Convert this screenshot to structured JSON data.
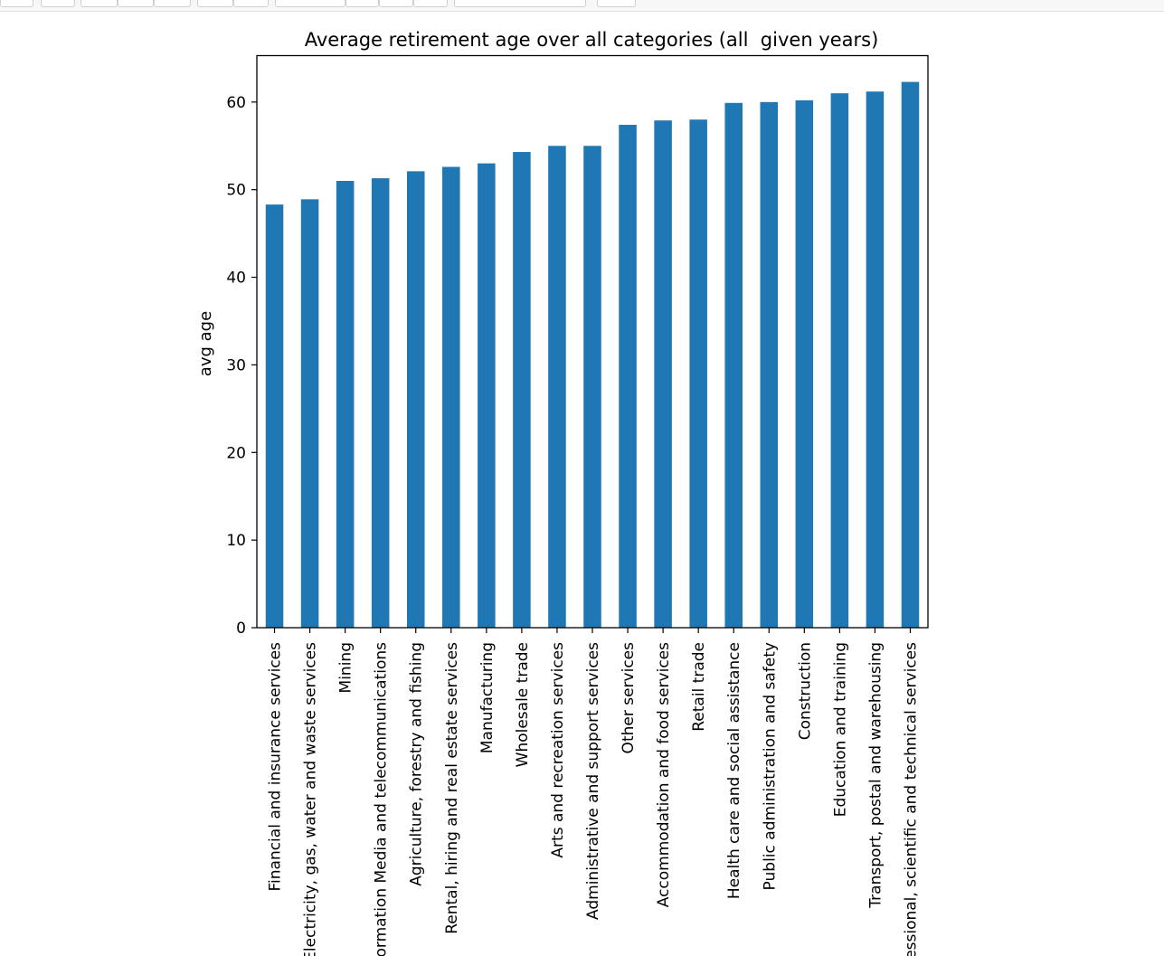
{
  "chart_data": {
    "type": "bar",
    "title": "Average retirement age over all categories (all  given years)",
    "xlabel": "",
    "ylabel": "avg age",
    "ylim": [
      0,
      65.3
    ],
    "yticks": [
      0,
      10,
      20,
      30,
      40,
      50,
      60
    ],
    "grid": false,
    "legend": "none",
    "bar_color": "#1f77b4",
    "categories": [
      "Financial and insurance services",
      "Electricity, gas, water and waste services",
      "Mining",
      "Information Media and telecommunications",
      "Agriculture, forestry and fishing",
      "Rental, hiring and real estate services",
      "Manufacturing",
      "Wholesale trade",
      "Arts and recreation services",
      "Administrative and support services",
      "Other services",
      "Accommodation and food services",
      "Retail trade",
      "Health care and social assistance",
      "Public administration and safety",
      "Construction",
      "Education and training",
      "Transport, postal and warehousing",
      "Professional, scientific and technical services"
    ],
    "values": [
      48.3,
      48.9,
      51.0,
      51.3,
      52.1,
      52.6,
      53.0,
      54.3,
      55.0,
      55.0,
      57.4,
      57.9,
      58.0,
      59.9,
      60.0,
      60.2,
      61.0,
      61.2,
      62.3
    ]
  }
}
